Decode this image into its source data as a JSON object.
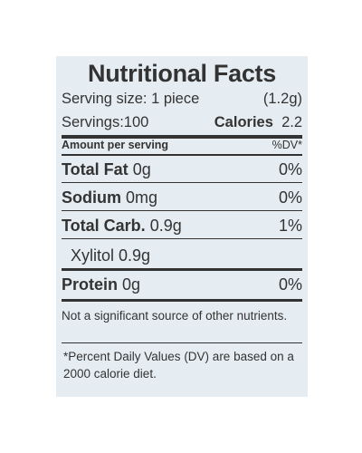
{
  "title": "Nutritional Facts",
  "serving_size": {
    "label": "Serving size:",
    "value": "1 piece",
    "weight": "(1.2g)"
  },
  "servings": {
    "label": "Servings:",
    "value": "100"
  },
  "calories": {
    "label": "Calories",
    "value": "2.2"
  },
  "header": {
    "amount": "Amount per serving",
    "dv": "%DV*"
  },
  "rows": [
    {
      "name": "Total Fat",
      "amount": "0g",
      "dv": "0%"
    },
    {
      "name": "Sodium",
      "amount": "0mg",
      "dv": "0%"
    },
    {
      "name": "Total Carb.",
      "amount": "0.9g",
      "dv": "1%"
    },
    {
      "name": "Xylitol",
      "amount": "0.9g"
    },
    {
      "name": "Protein",
      "amount": "0g",
      "dv": "0%"
    }
  ],
  "notes": [
    "Not a significant source of other nutrients.",
    "*Percent Daily Values (DV) are based on a 2000 calorie diet."
  ]
}
